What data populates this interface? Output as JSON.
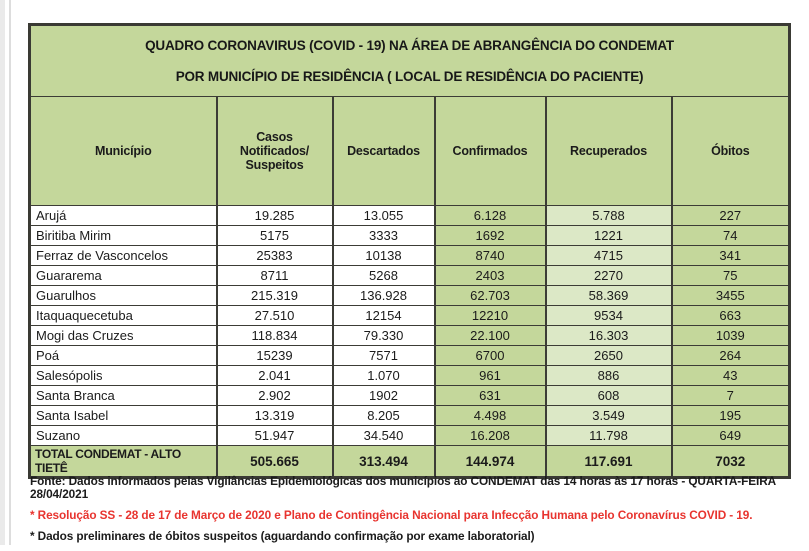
{
  "colors": {
    "table_green": "#c4d79b",
    "light_green": "#dce8c6",
    "note_red": "#e8342f",
    "border": "#3c3c36"
  },
  "title": {
    "line1": "QUADRO CORONAVIRUS (COVID - 19) NA ÁREA DE ABRANGÊNCIA DO CONDEMAT",
    "line2": "POR MUNICÍPIO DE RESIDÊNCIA ( LOCAL DE RESIDÊNCIA DO PACIENTE)"
  },
  "table": {
    "columns": [
      "Município",
      "Casos Notificados/\nSuspeitos",
      "Descartados",
      "Confirmados",
      "Recuperados",
      "Óbitos"
    ],
    "rows": [
      [
        "Arujá",
        "19.285",
        "13.055",
        "6.128",
        "5.788",
        "227"
      ],
      [
        "Biritiba Mirim",
        "5175",
        "3333",
        "1692",
        "1221",
        "74"
      ],
      [
        "Ferraz de Vasconcelos",
        "25383",
        "10138",
        "8740",
        "4715",
        "341"
      ],
      [
        "Guararema",
        "8711",
        "5268",
        "2403",
        "2270",
        "75"
      ],
      [
        "Guarulhos",
        "215.319",
        "136.928",
        "62.703",
        "58.369",
        "3455"
      ],
      [
        "Itaquaquecetuba",
        "27.510",
        "12154",
        "12210",
        "9534",
        "663"
      ],
      [
        "Mogi das Cruzes",
        "118.834",
        "79.330",
        "22.100",
        "16.303",
        "1039"
      ],
      [
        "Poá",
        "15239",
        "7571",
        "6700",
        "2650",
        "264"
      ],
      [
        "Salesópolis",
        "2.041",
        "1.070",
        "961",
        "886",
        "43"
      ],
      [
        "Santa Branca",
        "2.902",
        "1902",
        "631",
        "608",
        "7"
      ],
      [
        "Santa Isabel",
        "13.319",
        "8.205",
        "4.498",
        "3.549",
        "195"
      ],
      [
        "Suzano",
        "51.947",
        "34.540",
        "16.208",
        "11.798",
        "649"
      ]
    ],
    "total": {
      "label": "TOTAL CONDEMAT - ALTO TIETÊ",
      "values": [
        "505.665",
        "313.494",
        "144.974",
        "117.691",
        "7032"
      ]
    }
  },
  "notes": {
    "fonte": "Fonte: Dados informados pelas Vigilâncias Epidemiológicas dos municípios ao CONDEMAT das 14 horas às 17 horas - QUARTA-FEIRA 28/04/2021",
    "resolucao": "* Resolução SS - 28 de 17 de Março de 2020 e Plano de Contingência Nacional para Infecção Humana pelo Coronavírus COVID - 19.",
    "preliminares": "* Dados preliminares de óbitos suspeitos (aguardando confirmação por exame laboratorial)"
  }
}
